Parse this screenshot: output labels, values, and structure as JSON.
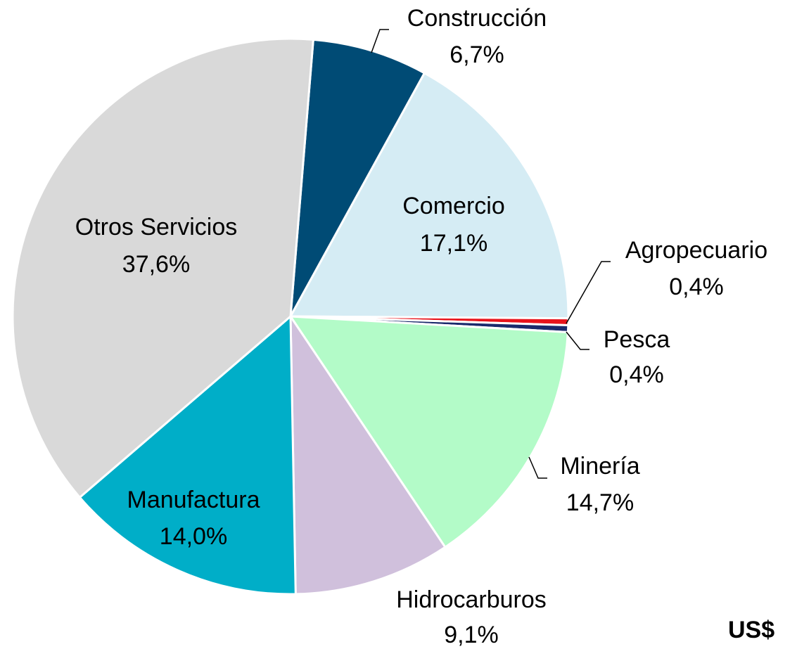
{
  "chart_data": {
    "type": "pie",
    "categories": [
      "Construcción",
      "Comercio",
      "Agropecuario",
      "Pesca",
      "Minería",
      "Hidrocarburos",
      "Manufactura",
      "Otros Servicios"
    ],
    "values": [
      6.7,
      17.1,
      0.4,
      0.4,
      14.7,
      9.1,
      14.0,
      37.6
    ],
    "value_labels": [
      "6,7%",
      "17,1%",
      "0,4%",
      "0,4%",
      "14,7%",
      "9,1%",
      "14,0%",
      "37,6%"
    ],
    "colors": [
      "#004b75",
      "#d5ecf4",
      "#e8141c",
      "#1a2a6c",
      "#b3fbc8",
      "#d0c0dc",
      "#00aec8",
      "#d9d9d9"
    ],
    "annotation": "US$"
  }
}
